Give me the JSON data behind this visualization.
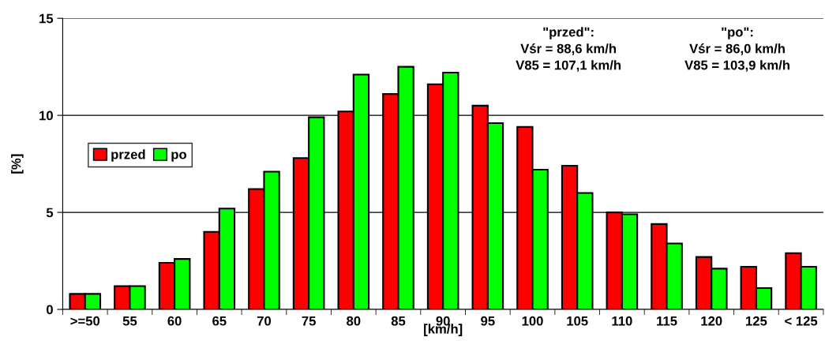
{
  "chart_data": {
    "type": "bar",
    "xlabel": "[km/h]",
    "ylabel": "[%]",
    "categories": [
      ">=50",
      "55",
      "60",
      "65",
      "70",
      "75",
      "80",
      "85",
      "90",
      "95",
      "100",
      "105",
      "110",
      "115",
      "120",
      "125",
      "< 125"
    ],
    "series": [
      {
        "name": "przed",
        "color": "#ff0000",
        "values": [
          0.8,
          1.2,
          2.4,
          4.0,
          6.2,
          7.8,
          10.2,
          11.1,
          11.6,
          10.5,
          9.4,
          7.4,
          5.0,
          4.4,
          2.7,
          2.2,
          2.9
        ]
      },
      {
        "name": "po",
        "color": "#00ff00",
        "values": [
          0.8,
          1.2,
          2.6,
          5.2,
          7.1,
          9.9,
          12.1,
          12.5,
          12.2,
          9.6,
          7.2,
          6.0,
          4.9,
          3.4,
          2.1,
          1.1,
          2.2
        ]
      }
    ],
    "ylim": [
      0,
      15
    ],
    "yticks": [
      0,
      5,
      10,
      15
    ],
    "grid": "y",
    "legend": "center left",
    "annotations": [
      "\"przed\":\nVśr = 88,6 km/h\nV85 = 107,1 km/h",
      "\"po\":\nVśr = 86,0 km/h\nV85 = 103,9 km/h"
    ]
  }
}
